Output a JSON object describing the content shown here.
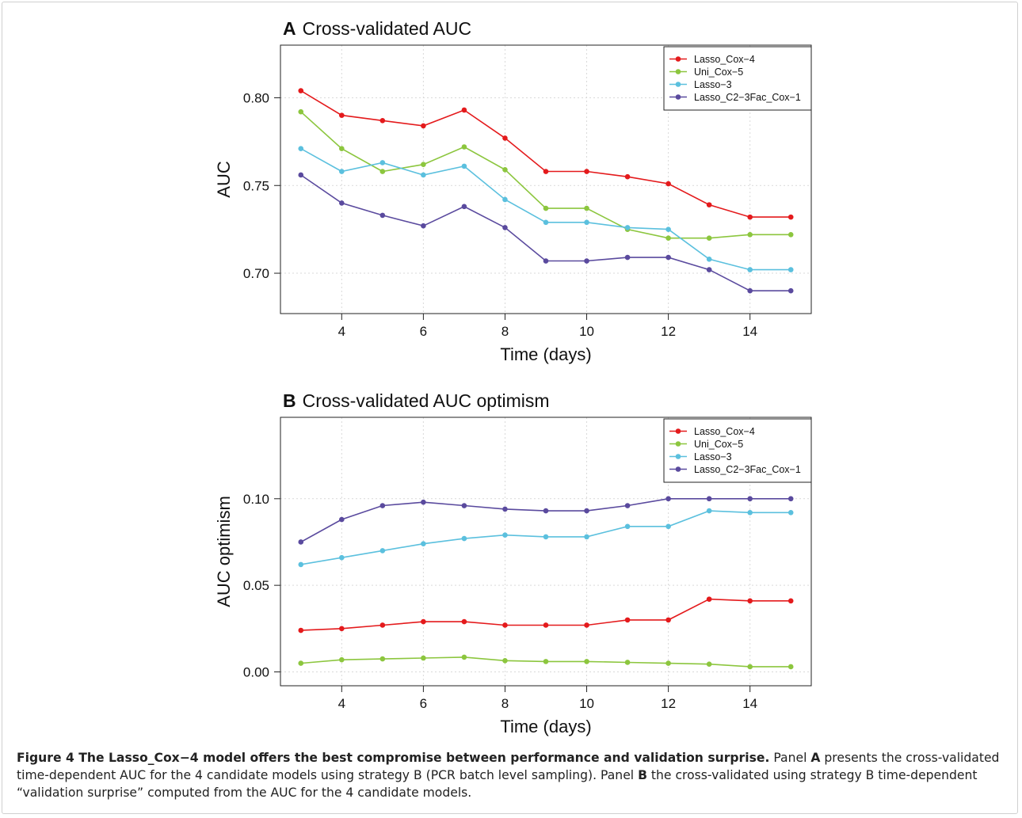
{
  "chart_data": [
    {
      "type": "line",
      "panel_letter": "A",
      "title": "Cross-validated AUC",
      "xlabel": "Time (days)",
      "ylabel": "AUC",
      "x": [
        3,
        4,
        5,
        6,
        7,
        8,
        9,
        10,
        11,
        12,
        13,
        14,
        15
      ],
      "xlim": [
        2.5,
        15.5
      ],
      "ylim": [
        0.677,
        0.83
      ],
      "xticks": [
        4,
        6,
        8,
        10,
        12,
        14
      ],
      "yticks": [
        0.7,
        0.75,
        0.8
      ],
      "ytick_labels": [
        "0.70",
        "0.75",
        "0.80"
      ],
      "grid": true,
      "legend_position": "top-right",
      "series": [
        {
          "name": "Lasso_Cox−4",
          "color": "#e41a1c",
          "values": [
            0.804,
            0.79,
            0.787,
            0.784,
            0.793,
            0.777,
            0.758,
            0.758,
            0.755,
            0.751,
            0.739,
            0.732,
            0.732
          ]
        },
        {
          "name": "Uni_Cox−5",
          "color": "#8cc63e",
          "values": [
            0.792,
            0.771,
            0.758,
            0.762,
            0.772,
            0.759,
            0.737,
            0.737,
            0.725,
            0.72,
            0.72,
            0.722,
            0.722
          ]
        },
        {
          "name": "Lasso−3",
          "color": "#5bc0de",
          "values": [
            0.771,
            0.758,
            0.763,
            0.756,
            0.761,
            0.742,
            0.729,
            0.729,
            0.726,
            0.725,
            0.708,
            0.702,
            0.702
          ]
        },
        {
          "name": "Lasso_C2−3Fac_Cox−1",
          "color": "#5a4a9e",
          "values": [
            0.756,
            0.74,
            0.733,
            0.727,
            0.738,
            0.726,
            0.707,
            0.707,
            0.709,
            0.709,
            0.702,
            0.69,
            0.69
          ]
        }
      ]
    },
    {
      "type": "line",
      "panel_letter": "B",
      "title": "Cross-validated AUC optimism",
      "xlabel": "Time (days)",
      "ylabel": "AUC optimism",
      "x": [
        3,
        4,
        5,
        6,
        7,
        8,
        9,
        10,
        11,
        12,
        13,
        14,
        15
      ],
      "xlim": [
        2.5,
        15.5
      ],
      "ylim": [
        -0.008,
        0.147
      ],
      "xticks": [
        4,
        6,
        8,
        10,
        12,
        14
      ],
      "yticks": [
        0.0,
        0.05,
        0.1
      ],
      "ytick_labels": [
        "0.00",
        "0.05",
        "0.10"
      ],
      "grid": true,
      "legend_position": "top-right",
      "series": [
        {
          "name": "Lasso_Cox−4",
          "color": "#e41a1c",
          "values": [
            0.024,
            0.025,
            0.027,
            0.029,
            0.029,
            0.027,
            0.027,
            0.027,
            0.03,
            0.03,
            0.042,
            0.041,
            0.041
          ]
        },
        {
          "name": "Uni_Cox−5",
          "color": "#8cc63e",
          "values": [
            0.005,
            0.007,
            0.0075,
            0.008,
            0.0085,
            0.0065,
            0.006,
            0.006,
            0.0055,
            0.005,
            0.0045,
            0.003,
            0.003
          ]
        },
        {
          "name": "Lasso−3",
          "color": "#5bc0de",
          "values": [
            0.062,
            0.066,
            0.07,
            0.074,
            0.077,
            0.079,
            0.078,
            0.078,
            0.084,
            0.084,
            0.093,
            0.092,
            0.092
          ]
        },
        {
          "name": "Lasso_C2−3Fac_Cox−1",
          "color": "#5a4a9e",
          "values": [
            0.075,
            0.088,
            0.096,
            0.098,
            0.096,
            0.094,
            0.093,
            0.093,
            0.096,
            0.1,
            0.1,
            0.1,
            0.1
          ]
        }
      ]
    }
  ],
  "caption": {
    "heading": "Figure 4 The Lasso_Cox−4 model offers the best compromise between performance and validation surprise.",
    "text_1": " Panel ",
    "bold_a": "A",
    "text_2": " presents the cross-validated time-dependent AUC for the 4 candidate models using strategy B (PCR batch level sampling). Panel ",
    "bold_b": "B",
    "text_3": " the cross-validated using strategy B time-dependent “validation surprise” computed from the AUC for the 4 candidate models."
  }
}
